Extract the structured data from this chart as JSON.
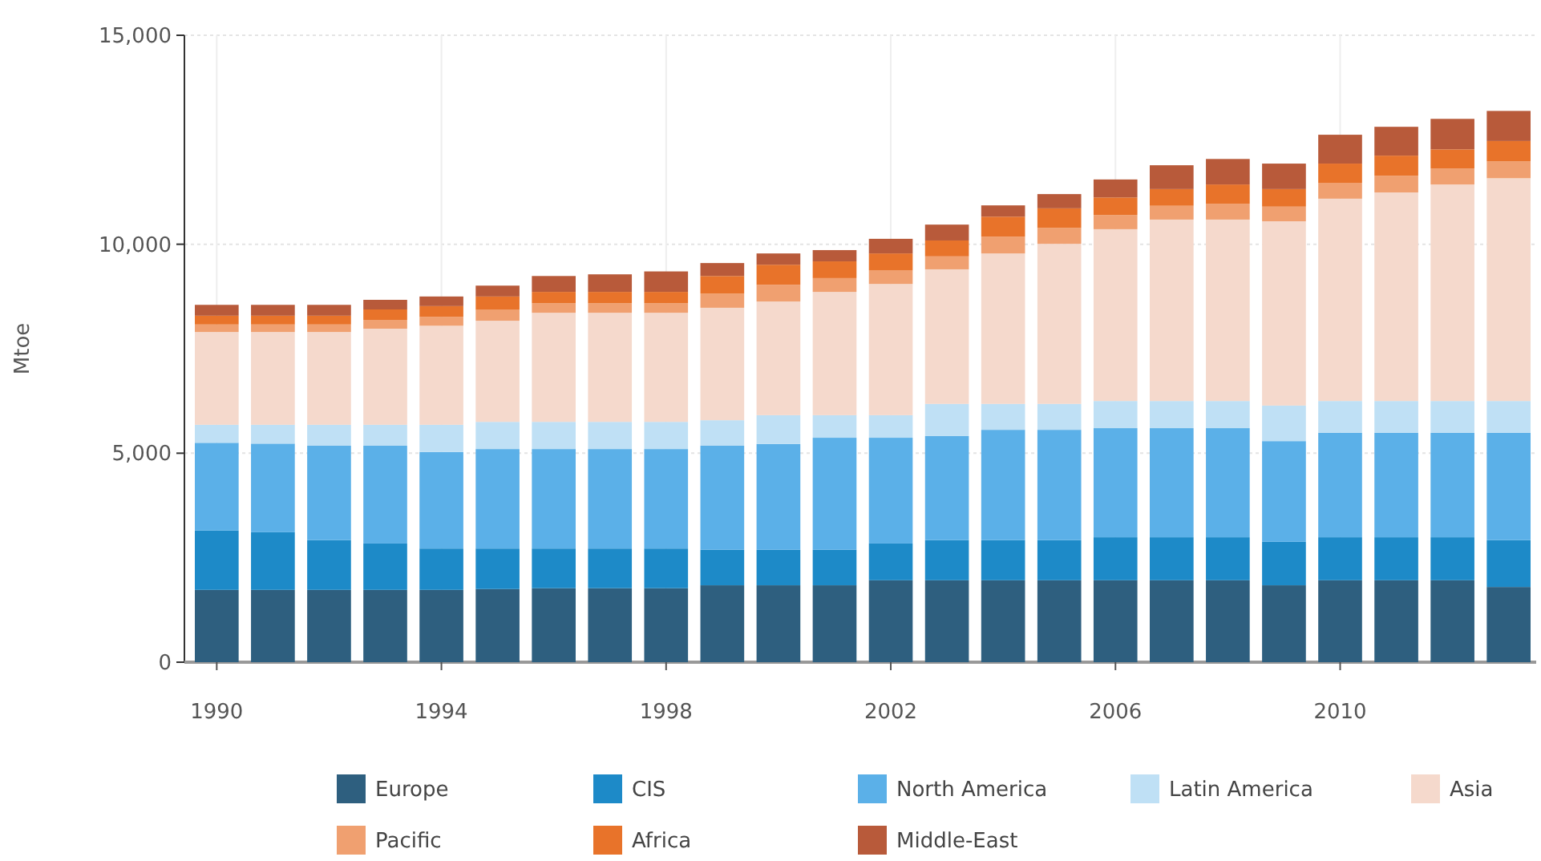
{
  "chart_data": {
    "type": "bar",
    "stacked": true,
    "ylabel": "Mtoe",
    "categories": [
      "1990",
      null,
      null,
      null,
      "1994",
      null,
      null,
      null,
      "1998",
      null,
      null,
      null,
      "2002",
      null,
      null,
      null,
      "2006",
      null,
      null,
      null,
      "2010",
      null,
      null,
      null
    ],
    "ylim": [
      0,
      15000
    ],
    "yticks": [
      0,
      {
        "value": 5000,
        "label": "5,000"
      },
      {
        "value": 10000,
        "label": "10,000"
      },
      {
        "value": 15000,
        "label": "15,000"
      }
    ],
    "grid": true,
    "legend": "bottom",
    "series": [
      {
        "name": "Europe",
        "color": "#2e5f7f",
        "values": [
          1730,
          1730,
          1730,
          1730,
          1730,
          1750,
          1770,
          1770,
          1770,
          1840,
          1840,
          1840,
          1960,
          1960,
          1960,
          1960,
          1960,
          1960,
          1960,
          1840,
          1960,
          1960,
          1960,
          1800
        ]
      },
      {
        "name": "CIS",
        "color": "#1d8ac8",
        "values": [
          1420,
          1380,
          1190,
          1110,
          990,
          970,
          950,
          950,
          950,
          850,
          850,
          850,
          880,
          960,
          960,
          960,
          1030,
          1030,
          1030,
          1040,
          1030,
          1030,
          1030,
          1120
        ]
      },
      {
        "name": "North America",
        "color": "#5bb0e8",
        "values": [
          2100,
          2120,
          2260,
          2340,
          2310,
          2380,
          2380,
          2380,
          2380,
          2490,
          2530,
          2680,
          2530,
          2490,
          2640,
          2640,
          2610,
          2610,
          2610,
          2410,
          2500,
          2500,
          2500,
          2570
        ]
      },
      {
        "name": "Latin America",
        "color": "#bfe0f5",
        "values": [
          430,
          450,
          500,
          500,
          650,
          650,
          650,
          650,
          650,
          610,
          690,
          540,
          540,
          770,
          620,
          620,
          650,
          650,
          650,
          850,
          760,
          760,
          760,
          760
        ]
      },
      {
        "name": "Asia",
        "color": "#f5d9cc",
        "values": [
          2220,
          2220,
          2220,
          2300,
          2370,
          2420,
          2610,
          2610,
          2610,
          2690,
          2720,
          2950,
          3140,
          3220,
          3600,
          3830,
          4110,
          4340,
          4340,
          4410,
          4840,
          4990,
          5180,
          5330
        ]
      },
      {
        "name": "Pacific",
        "color": "#f0a070",
        "values": [
          180,
          180,
          180,
          210,
          210,
          260,
          230,
          230,
          230,
          340,
          400,
          330,
          330,
          310,
          400,
          380,
          340,
          330,
          380,
          350,
          380,
          400,
          380,
          400
        ]
      },
      {
        "name": "Africa",
        "color": "#e8732a",
        "values": [
          210,
          210,
          210,
          250,
          260,
          320,
          270,
          270,
          270,
          420,
          480,
          400,
          400,
          380,
          480,
          470,
          420,
          400,
          460,
          420,
          460,
          480,
          460,
          490
        ]
      },
      {
        "name": "Middle-East",
        "color": "#b85a3a",
        "values": [
          260,
          260,
          260,
          230,
          230,
          260,
          380,
          420,
          490,
          310,
          270,
          270,
          350,
          380,
          270,
          340,
          430,
          570,
          610,
          610,
          690,
          690,
          730,
          720
        ]
      }
    ]
  }
}
